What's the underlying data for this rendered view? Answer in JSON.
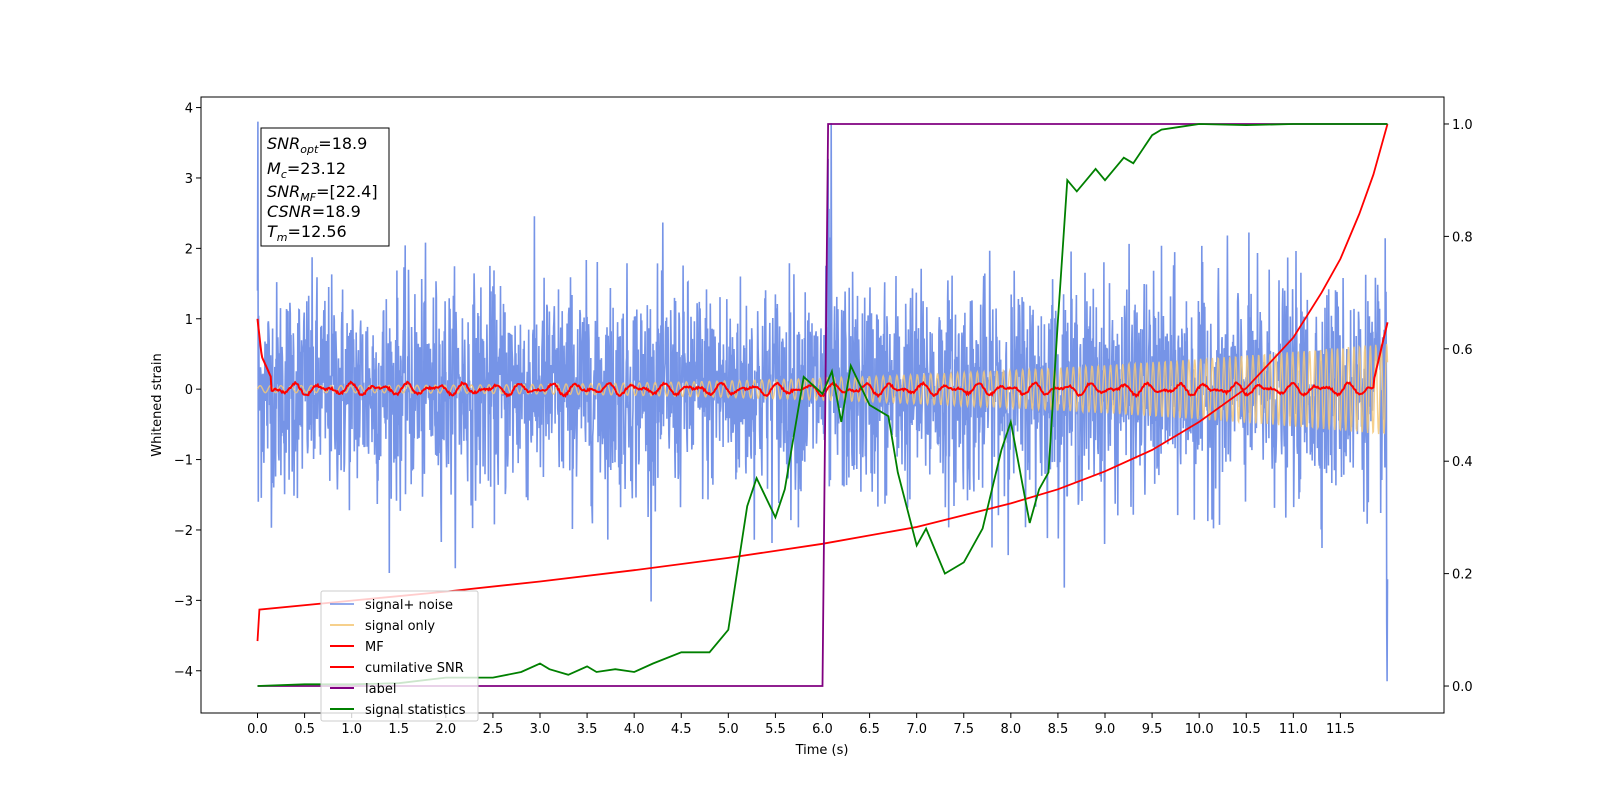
{
  "chart_data": {
    "type": "line",
    "xlabel": "Time (s)",
    "ylabel": "Whitened strain",
    "xlim": [
      -0.6,
      12.6
    ],
    "ylim": [
      -4.6,
      4.15
    ],
    "y2lim": [
      -0.048,
      1.048
    ],
    "x_ticks": [
      "0.0",
      "0.5",
      "1.0",
      "1.5",
      "2.0",
      "2.5",
      "3.0",
      "3.5",
      "4.0",
      "4.5",
      "5.0",
      "5.5",
      "6.0",
      "6.5",
      "7.0",
      "7.5",
      "8.0",
      "8.5",
      "9.0",
      "9.5",
      "10.0",
      "10.5",
      "11.0",
      "11.5"
    ],
    "y_ticks": [
      "4",
      "3",
      "2",
      "1",
      "0",
      "−1",
      "−2",
      "−3",
      "−4"
    ],
    "y2_ticks": [
      "1.0",
      "0.8",
      "0.6",
      "0.4",
      "0.2",
      "0.0"
    ],
    "legend_placement": "lower-left",
    "grid": false,
    "annotation": {
      "line1": {
        "base": "SNR",
        "sub": "opt",
        "value": "=18.9"
      },
      "line2": {
        "base": "M",
        "sub": "c",
        "value": "=23.12"
      },
      "line3": {
        "base": "SNR",
        "sub": "MF",
        "value": "=[22.4]"
      },
      "line4": {
        "base": "CSNR",
        "value": "=18.9"
      },
      "line5": {
        "base": "T",
        "sub": "m",
        "value": "=12.56"
      }
    },
    "series": [
      {
        "name": "signal+ noise",
        "color": "#6f8ee6",
        "axis": "left",
        "kind": "noise",
        "x_range": [
          0,
          12
        ],
        "sigma": 0.75
      },
      {
        "name": "signal only",
        "color": "#f5c878",
        "axis": "left",
        "kind": "chirp",
        "x_range": [
          0,
          12
        ],
        "amp_start": 0.05,
        "amp_end": 0.65
      },
      {
        "name": "MF",
        "color": "#ff0000",
        "axis": "left",
        "kind": "mf",
        "x_range": [
          0,
          12
        ],
        "points": [
          [
            0,
            1.0
          ],
          [
            0.05,
            0.4
          ],
          [
            0.1,
            0.15
          ],
          [
            0.2,
            0.15
          ],
          [
            11.8,
            0.05
          ],
          [
            11.9,
            0.15
          ],
          [
            12.0,
            0.95
          ]
        ]
      },
      {
        "name": "cumilative SNR",
        "color": "#ff0000",
        "axis": "right",
        "x": [
          0,
          0.02,
          1,
          2,
          3,
          4,
          5,
          6,
          7,
          8,
          8.5,
          9,
          9.5,
          10,
          10.5,
          11,
          11.3,
          11.5,
          11.7,
          11.85,
          12.0
        ],
        "y": [
          0.08,
          0.136,
          0.152,
          0.168,
          0.186,
          0.206,
          0.228,
          0.253,
          0.283,
          0.325,
          0.35,
          0.382,
          0.42,
          0.47,
          0.53,
          0.62,
          0.7,
          0.76,
          0.84,
          0.91,
          1.0
        ]
      },
      {
        "name": "label",
        "color": "#800080",
        "axis": "right",
        "x": [
          0,
          6.0,
          6.06,
          12.0
        ],
        "y": [
          0.0,
          0.0,
          1.0,
          1.0
        ]
      },
      {
        "name": "signal statistics",
        "color": "#008000",
        "axis": "right",
        "x": [
          0,
          0.5,
          1,
          1.5,
          2,
          2.5,
          2.8,
          3,
          3.1,
          3.3,
          3.5,
          3.6,
          3.8,
          4,
          4.2,
          4.5,
          4.8,
          5,
          5.2,
          5.3,
          5.5,
          5.6,
          5.8,
          6,
          6.1,
          6.2,
          6.3,
          6.5,
          6.7,
          6.8,
          7,
          7.1,
          7.3,
          7.5,
          7.7,
          7.9,
          8,
          8.2,
          8.3,
          8.4,
          8.5,
          8.6,
          8.7,
          8.8,
          8.9,
          9,
          9.1,
          9.2,
          9.3,
          9.5,
          9.6,
          9.8,
          10,
          10.5,
          11,
          11.5,
          12.0
        ],
        "y": [
          0.0,
          0.003,
          0.003,
          0.005,
          0.015,
          0.015,
          0.025,
          0.04,
          0.03,
          0.02,
          0.035,
          0.025,
          0.03,
          0.025,
          0.04,
          0.06,
          0.06,
          0.1,
          0.32,
          0.37,
          0.3,
          0.35,
          0.55,
          0.52,
          0.56,
          0.47,
          0.57,
          0.5,
          0.48,
          0.38,
          0.25,
          0.28,
          0.2,
          0.22,
          0.28,
          0.42,
          0.47,
          0.29,
          0.35,
          0.38,
          0.65,
          0.9,
          0.88,
          0.9,
          0.92,
          0.9,
          0.92,
          0.94,
          0.93,
          0.98,
          0.99,
          0.995,
          1.0,
          0.998,
          1.0,
          1.0,
          1.0
        ]
      }
    ]
  }
}
